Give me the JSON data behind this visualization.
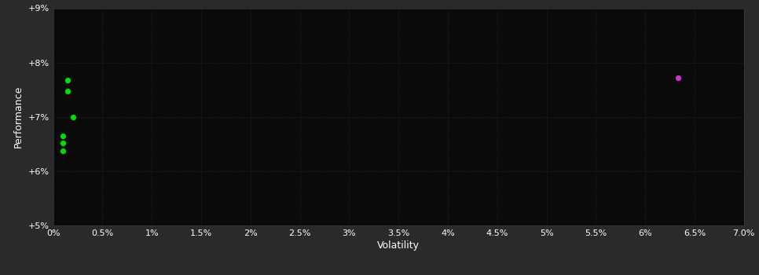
{
  "background_color": "#2a2a2a",
  "plot_bg_color": "#0a0a0a",
  "grid_color": "#3a3a3a",
  "text_color": "#ffffff",
  "xlabel": "Volatility",
  "ylabel": "Performance",
  "xlim": [
    0,
    0.07
  ],
  "ylim": [
    0.05,
    0.09
  ],
  "xticks": [
    0.0,
    0.005,
    0.01,
    0.015,
    0.02,
    0.025,
    0.03,
    0.035,
    0.04,
    0.045,
    0.05,
    0.055,
    0.06,
    0.065,
    0.07
  ],
  "yticks": [
    0.05,
    0.06,
    0.07,
    0.08,
    0.09
  ],
  "green_points": [
    [
      0.0015,
      0.0768
    ],
    [
      0.0015,
      0.0748
    ],
    [
      0.002,
      0.07
    ],
    [
      0.001,
      0.0665
    ],
    [
      0.001,
      0.0652
    ],
    [
      0.001,
      0.0638
    ]
  ],
  "magenta_point": [
    0.0633,
    0.0772
  ],
  "green_color": "#00dd00",
  "magenta_color": "#cc33cc",
  "point_size": 18,
  "font_size": 8
}
